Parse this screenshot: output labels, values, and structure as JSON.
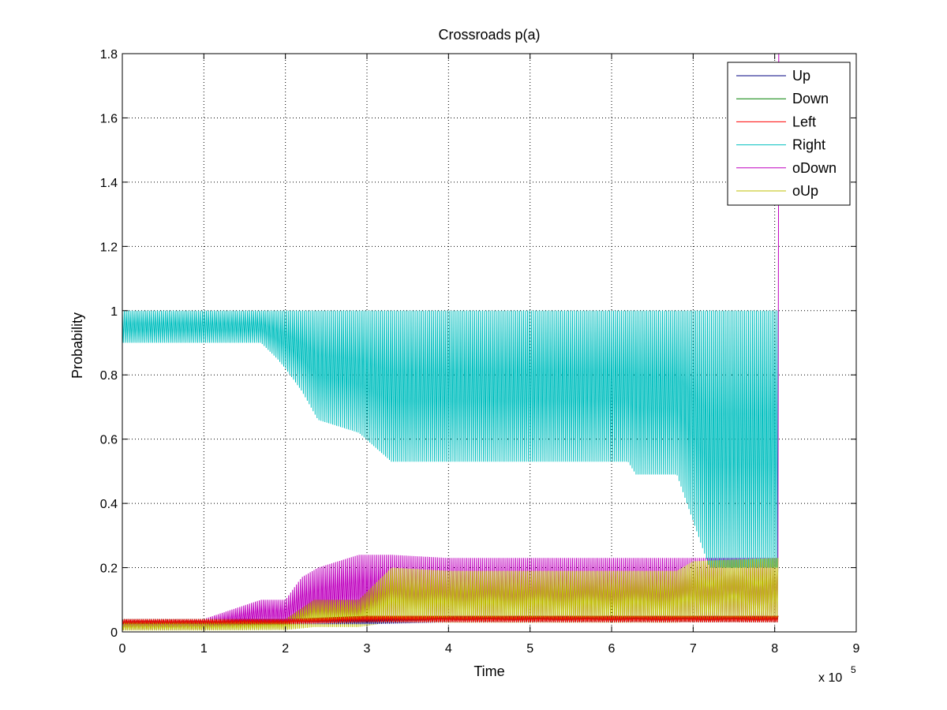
{
  "chart_data": {
    "type": "line",
    "title": "Crossroads p(a)",
    "xlabel": "Time",
    "ylabel": "Probability",
    "x_multiplier_label": "x 10",
    "x_multiplier_exponent": "5",
    "xlim": [
      0,
      9
    ],
    "ylim": [
      0,
      1.8
    ],
    "x_ticks": [
      0,
      1,
      2,
      3,
      4,
      5,
      6,
      7,
      8,
      9
    ],
    "x_tick_labels": [
      "0",
      "1",
      "2",
      "3",
      "4",
      "5",
      "6",
      "7",
      "8",
      "9"
    ],
    "y_ticks": [
      0,
      0.2,
      0.4,
      0.6,
      0.8,
      1,
      1.2,
      1.4,
      1.6,
      1.8
    ],
    "y_tick_labels": [
      "0",
      "0.2",
      "0.4",
      "0.6",
      "0.8",
      "1",
      "1.2",
      "1.4",
      "1.6",
      "1.8"
    ],
    "grid": true,
    "legend_position": "top-right",
    "series": [
      {
        "name": "Up",
        "color": "#00007f",
        "x": [
          0,
          1,
          2,
          3,
          4,
          5,
          6,
          7,
          8,
          8.05
        ],
        "y": [
          0.04,
          0.04,
          0.04,
          0.04,
          0.05,
          0.05,
          0.05,
          0.05,
          0.05,
          0.05
        ]
      },
      {
        "name": "Down",
        "color": "#008000",
        "x": [
          0,
          1,
          2,
          3,
          4,
          5,
          6,
          7,
          8,
          8.05
        ],
        "y": [
          0.04,
          0.04,
          0.04,
          0.05,
          0.05,
          0.05,
          0.05,
          0.05,
          0.05,
          0.05
        ]
      },
      {
        "name": "Left",
        "color": "#ff0000",
        "x": [
          0,
          1,
          2,
          3,
          4,
          5,
          6,
          7,
          8,
          8.05
        ],
        "y": [
          0.04,
          0.04,
          0.04,
          0.05,
          0.05,
          0.05,
          0.05,
          0.05,
          0.05,
          0.05
        ]
      },
      {
        "name": "Right",
        "color": "#00bfbf",
        "x": [
          0,
          1,
          1.7,
          1.9,
          2.0,
          2.2,
          2.4,
          2.9,
          3.3,
          4,
          5,
          6.2,
          6.3,
          6.8,
          7.2,
          8.05
        ],
        "y": [
          0.9,
          0.9,
          0.9,
          0.85,
          0.82,
          0.75,
          0.66,
          0.62,
          0.53,
          0.53,
          0.53,
          0.53,
          0.49,
          0.49,
          0.2,
          0.2
        ],
        "y_max": 1.0
      },
      {
        "name": "oDown",
        "color": "#bf00bf",
        "x": [
          0,
          1,
          1.7,
          2.0,
          2.2,
          2.4,
          2.9,
          3.3,
          4,
          5,
          6,
          7,
          8,
          8.05,
          8.05
        ],
        "y": [
          0.04,
          0.04,
          0.1,
          0.1,
          0.17,
          0.2,
          0.24,
          0.24,
          0.23,
          0.23,
          0.23,
          0.23,
          0.23,
          0.23,
          1.8
        ]
      },
      {
        "name": "oUp",
        "color": "#bfbf00",
        "x": [
          0,
          1,
          2.0,
          2.35,
          2.9,
          3.3,
          4,
          5,
          6,
          6.8,
          7,
          8,
          8.05
        ],
        "y": [
          0.03,
          0.03,
          0.04,
          0.1,
          0.1,
          0.2,
          0.19,
          0.19,
          0.19,
          0.19,
          0.22,
          0.23,
          0.23
        ]
      }
    ]
  }
}
